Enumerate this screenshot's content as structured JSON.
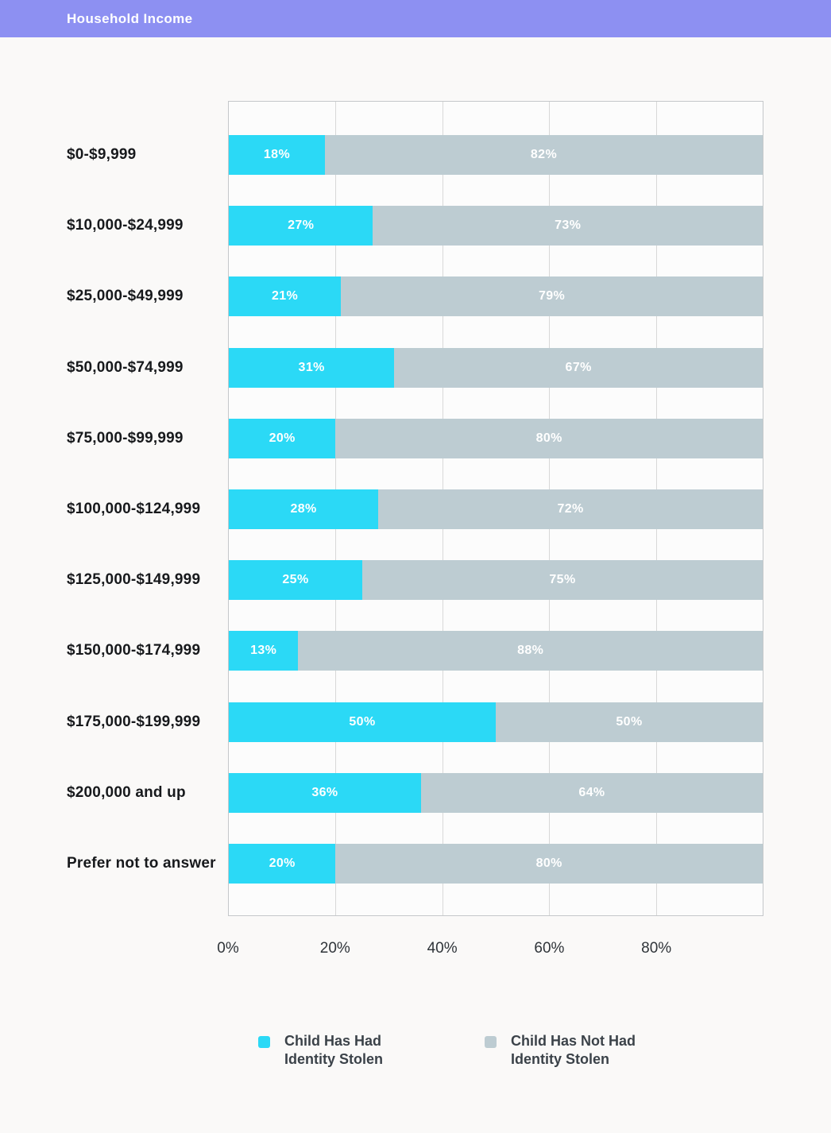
{
  "header": {
    "title": "Household Income",
    "background_color": "#8D90F2",
    "text_color": "#FFFFFF"
  },
  "chart_data": {
    "type": "bar",
    "orientation": "horizontal",
    "stacked": true,
    "categories": [
      "$0-$9,999",
      "$10,000-$24,999",
      "$25,000-$49,999",
      "$50,000-$74,999",
      "$75,000-$99,999",
      "$100,000-$124,999",
      "$125,000-$149,999",
      "$150,000-$174,999",
      "$175,000-$199,999",
      "$200,000 and up",
      "Prefer not to answer"
    ],
    "series": [
      {
        "name": "Child Has Had Identity Stolen",
        "color": "#2BD9F6",
        "values": [
          18,
          27,
          21,
          31,
          20,
          28,
          25,
          13,
          50,
          36,
          20
        ]
      },
      {
        "name": "Child Has Not Had Identity Stolen",
        "color": "#BDCCD2",
        "values": [
          82,
          73,
          79,
          67,
          80,
          72,
          75,
          88,
          50,
          64,
          80
        ]
      }
    ],
    "value_suffix": "%",
    "bar_label_color": "#FFFFFF",
    "x_ticks": [
      "0%",
      "20%",
      "40%",
      "60%",
      "80%"
    ],
    "xlim": [
      0,
      100
    ],
    "grid": "vertical lines every 20%",
    "legend_position": "bottom"
  },
  "legend": {
    "items": [
      {
        "label": "Child Has Had\nIdentity Stolen",
        "color": "#2BD9F6"
      },
      {
        "label": "Child Has Not Had\nIdentity Stolen",
        "color": "#BDCCD2"
      }
    ]
  }
}
